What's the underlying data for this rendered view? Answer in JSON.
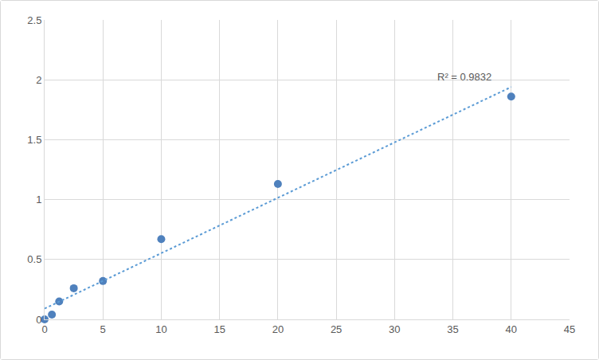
{
  "chart_data": {
    "type": "scatter",
    "xlim": [
      0,
      45
    ],
    "xticks": [
      0,
      5,
      10,
      15,
      20,
      25,
      30,
      35,
      40,
      45
    ],
    "ylim": [
      0,
      2.5
    ],
    "yticks": [
      0,
      0.5,
      1,
      1.5,
      2,
      2.5
    ],
    "grid": true,
    "series": [
      {
        "type": "scatter",
        "marker": "circle",
        "color": "#4f81bd",
        "x": [
          0,
          0.625,
          1.25,
          2.5,
          5,
          10,
          20,
          40
        ],
        "values": [
          0,
          0.04,
          0.15,
          0.26,
          0.32,
          0.67,
          1.13,
          1.86
        ]
      },
      {
        "type": "line",
        "line_style": "dotted",
        "color": "#5b9bd5",
        "x": [
          0,
          40
        ],
        "values": [
          0.09,
          1.94
        ]
      }
    ],
    "annotations": [
      {
        "text": "R² = 0.9832",
        "x": 36,
        "y": 1.96
      }
    ]
  }
}
